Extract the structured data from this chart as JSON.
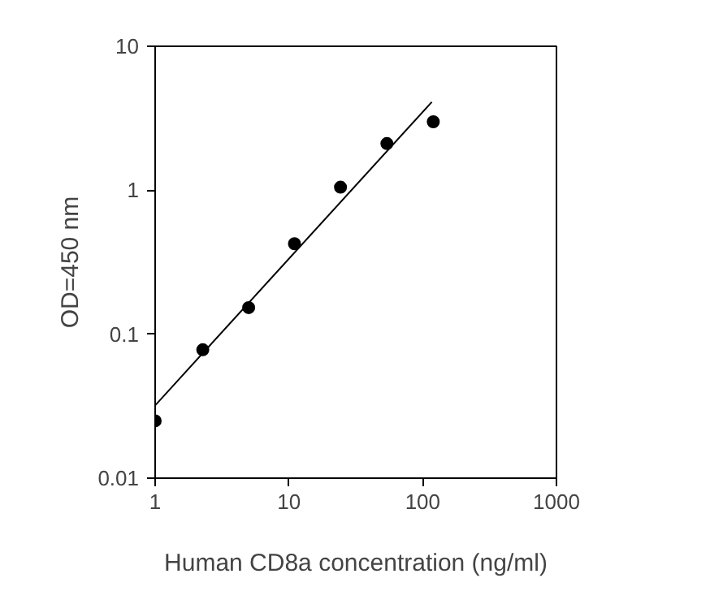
{
  "chart_data": {
    "type": "scatter",
    "xlabel": "Human CD8a concentration (ng/ml)",
    "ylabel": "OD=450 nm",
    "log": "xy",
    "grid": false,
    "xlim": [
      1,
      1000
    ],
    "ylim": [
      0.01,
      10
    ],
    "xticks": [
      1,
      10,
      100,
      1000
    ],
    "yticks": [
      0.01,
      0.1,
      1,
      10
    ],
    "series": [
      {
        "marker": "circle",
        "color": "#000000",
        "x": [
          1,
          2.27,
          5,
          11,
          24.3,
          54,
          120
        ],
        "values": [
          0.025,
          0.078,
          0.153,
          0.425,
          1.05,
          2.11,
          2.99
        ]
      },
      {
        "type": "line",
        "color": "#000000",
        "x": [
          1,
          117
        ],
        "values": [
          0.032,
          4.1
        ]
      }
    ]
  }
}
